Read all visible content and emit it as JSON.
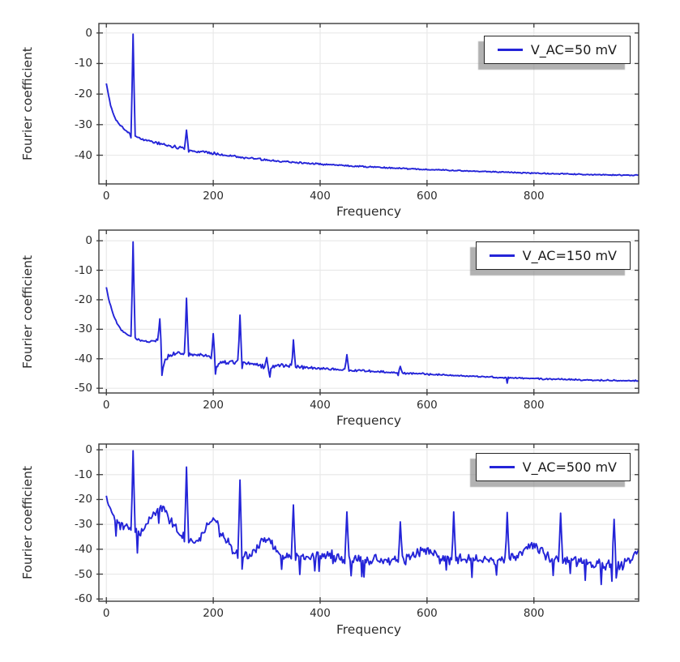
{
  "figure": {
    "background": "#ffffff",
    "line_color": "#2424d8",
    "grid_color": "#e9e9e9",
    "frame_color": "#3b3b3b",
    "text_color": "#2b2b2b",
    "legend_border_color": "#262626",
    "legend_shadow_color": "#b4b4b4"
  },
  "chart_data": [
    {
      "type": "line",
      "title": "",
      "xlabel": "Frequency",
      "ylabel": "Fourier coefficient",
      "legend": "V_AC=50 mV",
      "legend_position": "top-right",
      "grid": true,
      "xticks": [
        0,
        200,
        400,
        600,
        800
      ],
      "yticks": [
        0,
        -10,
        -20,
        -30,
        -40
      ],
      "xlim": [
        -14,
        996
      ],
      "ylim": [
        -49.4,
        3.1
      ],
      "sampling": {
        "start": 0,
        "end": 996,
        "step": 2,
        "seed": 101
      },
      "trend_anchors": [
        [
          0,
          -16.5
        ],
        [
          3,
          -19.5
        ],
        [
          7,
          -23
        ],
        [
          12,
          -26
        ],
        [
          18,
          -28.3
        ],
        [
          25,
          -30
        ],
        [
          32,
          -31.2
        ],
        [
          40,
          -32.3
        ],
        [
          46,
          -33.3
        ],
        [
          55,
          -33.9
        ],
        [
          65,
          -34.6
        ],
        [
          78,
          -35.3
        ],
        [
          92,
          -35.9
        ],
        [
          106,
          -36.4
        ],
        [
          120,
          -37
        ],
        [
          134,
          -37.6
        ],
        [
          148,
          -38.1
        ],
        [
          160,
          -38.4
        ],
        [
          175,
          -38.9
        ],
        [
          190,
          -39.2
        ],
        [
          205,
          -39.6
        ],
        [
          225,
          -40
        ],
        [
          250,
          -40.6
        ],
        [
          275,
          -41.1
        ],
        [
          300,
          -41.6
        ],
        [
          330,
          -42
        ],
        [
          360,
          -42.4
        ],
        [
          400,
          -42.9
        ],
        [
          440,
          -43.3
        ],
        [
          480,
          -43.7
        ],
        [
          520,
          -44
        ],
        [
          560,
          -44.4
        ],
        [
          600,
          -44.7
        ],
        [
          650,
          -45
        ],
        [
          700,
          -45.3
        ],
        [
          750,
          -45.6
        ],
        [
          800,
          -45.9
        ],
        [
          850,
          -46.1
        ],
        [
          900,
          -46.3
        ],
        [
          950,
          -46.5
        ],
        [
          996,
          -46.6
        ]
      ],
      "noise_profile": [
        [
          0,
          0.25
        ],
        [
          60,
          0.3
        ],
        [
          110,
          0.6
        ],
        [
          150,
          0.7
        ],
        [
          200,
          0.55
        ],
        [
          260,
          0.45
        ],
        [
          350,
          0.3
        ],
        [
          600,
          0.22
        ],
        [
          1000,
          0.2
        ]
      ],
      "peaks": [
        [
          50,
          -0.4
        ],
        [
          150,
          -31.8
        ]
      ],
      "dips": [
        [
          46,
          -34.3
        ]
      ],
      "deep_dip_prob": 0,
      "deep_dip_extra": 0
    },
    {
      "type": "line",
      "title": "",
      "xlabel": "Frequency",
      "ylabel": "Fourier coefficient",
      "legend": "V_AC=150 mV",
      "legend_position": "top-right",
      "grid": true,
      "xticks": [
        0,
        200,
        400,
        600,
        800
      ],
      "yticks": [
        0,
        -10,
        -20,
        -30,
        -40,
        -50
      ],
      "xlim": [
        -14,
        996
      ],
      "ylim": [
        -51.6,
        3.6
      ],
      "sampling": {
        "start": 0,
        "end": 996,
        "step": 2,
        "seed": 202
      },
      "trend_anchors": [
        [
          0,
          -15.8
        ],
        [
          4,
          -19.5
        ],
        [
          8,
          -22
        ],
        [
          14,
          -25.5
        ],
        [
          20,
          -28
        ],
        [
          26,
          -29.8
        ],
        [
          32,
          -31
        ],
        [
          38,
          -31.8
        ],
        [
          44,
          -32.4
        ],
        [
          52,
          -33
        ],
        [
          62,
          -33.6
        ],
        [
          72,
          -34
        ],
        [
          82,
          -34.2
        ],
        [
          92,
          -34
        ],
        [
          98,
          -33.6
        ],
        [
          102,
          -40
        ],
        [
          106,
          -43
        ],
        [
          110,
          -40.5
        ],
        [
          116,
          -39
        ],
        [
          124,
          -38.6
        ],
        [
          134,
          -38.4
        ],
        [
          144,
          -38.6
        ],
        [
          152,
          -38.4
        ],
        [
          162,
          -38.8
        ],
        [
          172,
          -38.2
        ],
        [
          182,
          -38.8
        ],
        [
          192,
          -39.2
        ],
        [
          200,
          -40
        ],
        [
          204,
          -43.2
        ],
        [
          210,
          -41.6
        ],
        [
          220,
          -41.2
        ],
        [
          232,
          -41.4
        ],
        [
          244,
          -41
        ],
        [
          256,
          -41.4
        ],
        [
          268,
          -41.6
        ],
        [
          280,
          -42
        ],
        [
          292,
          -42.6
        ],
        [
          300,
          -43
        ],
        [
          304,
          -44.6
        ],
        [
          310,
          -42.6
        ],
        [
          322,
          -42.1
        ],
        [
          334,
          -42.3
        ],
        [
          346,
          -42.5
        ],
        [
          360,
          -42.8
        ],
        [
          380,
          -43
        ],
        [
          400,
          -43.2
        ],
        [
          430,
          -43.6
        ],
        [
          460,
          -43.9
        ],
        [
          490,
          -44.2
        ],
        [
          520,
          -44.5
        ],
        [
          560,
          -44.9
        ],
        [
          600,
          -45.2
        ],
        [
          640,
          -45.6
        ],
        [
          680,
          -45.9
        ],
        [
          720,
          -46.2
        ],
        [
          760,
          -46.5
        ],
        [
          800,
          -46.7
        ],
        [
          840,
          -46.9
        ],
        [
          880,
          -47.1
        ],
        [
          920,
          -47.3
        ],
        [
          960,
          -47.4
        ],
        [
          996,
          -47.5
        ]
      ],
      "noise_profile": [
        [
          0,
          0.25
        ],
        [
          60,
          0.35
        ],
        [
          95,
          0.5
        ],
        [
          110,
          0.9
        ],
        [
          170,
          0.7
        ],
        [
          230,
          0.8
        ],
        [
          320,
          0.7
        ],
        [
          420,
          0.5
        ],
        [
          520,
          0.35
        ],
        [
          700,
          0.28
        ],
        [
          1000,
          0.25
        ]
      ],
      "peaks": [
        [
          50,
          -0.4
        ],
        [
          100,
          -26.5
        ],
        [
          150,
          -19.5
        ],
        [
          200,
          -31.5
        ],
        [
          250,
          -25.2
        ],
        [
          300,
          -39.6
        ],
        [
          350,
          -33.6
        ],
        [
          450,
          -38.6
        ],
        [
          550,
          -42.6
        ]
      ],
      "dips": [
        [
          104,
          -45.6
        ],
        [
          204,
          -45.2
        ],
        [
          306,
          -46.2
        ]
      ],
      "deep_dip_prob": 0.008,
      "deep_dip_extra": 2
    },
    {
      "type": "line",
      "title": "",
      "xlabel": "Frequency",
      "ylabel": "Fourier coefficient",
      "legend": "V_AC=500 mV",
      "legend_position": "top-right",
      "grid": true,
      "xticks": [
        0,
        200,
        400,
        600,
        800
      ],
      "yticks": [
        0,
        -10,
        -20,
        -30,
        -40,
        -50,
        -60
      ],
      "xlim": [
        -14,
        996
      ],
      "ylim": [
        -60.9,
        2.3
      ],
      "sampling": {
        "start": 0,
        "end": 996,
        "step": 2,
        "seed": 303
      },
      "trend_anchors": [
        [
          0,
          -19.5
        ],
        [
          6,
          -23
        ],
        [
          12,
          -26
        ],
        [
          18,
          -28.5
        ],
        [
          26,
          -30.5
        ],
        [
          34,
          -31.5
        ],
        [
          44,
          -32.3
        ],
        [
          52,
          -32.5
        ],
        [
          58,
          -34.5
        ],
        [
          64,
          -33
        ],
        [
          72,
          -31
        ],
        [
          80,
          -28.5
        ],
        [
          88,
          -26
        ],
        [
          96,
          -23.8
        ],
        [
          102,
          -23
        ],
        [
          108,
          -24.5
        ],
        [
          116,
          -27
        ],
        [
          124,
          -30
        ],
        [
          132,
          -32.5
        ],
        [
          140,
          -34.5
        ],
        [
          150,
          -35.8
        ],
        [
          160,
          -36.5
        ],
        [
          170,
          -37.5
        ],
        [
          178,
          -34.5
        ],
        [
          186,
          -31
        ],
        [
          194,
          -28.8
        ],
        [
          202,
          -27.8
        ],
        [
          210,
          -30.5
        ],
        [
          218,
          -33.5
        ],
        [
          226,
          -37
        ],
        [
          234,
          -40.5
        ],
        [
          244,
          -42
        ],
        [
          256,
          -42.3
        ],
        [
          268,
          -42.8
        ],
        [
          278,
          -41
        ],
        [
          288,
          -38
        ],
        [
          298,
          -35.8
        ],
        [
          308,
          -37.5
        ],
        [
          318,
          -40.5
        ],
        [
          330,
          -42.8
        ],
        [
          344,
          -43.2
        ],
        [
          360,
          -43
        ],
        [
          380,
          -42.6
        ],
        [
          400,
          -42.2
        ],
        [
          420,
          -43
        ],
        [
          440,
          -43.6
        ],
        [
          470,
          -44
        ],
        [
          500,
          -44
        ],
        [
          530,
          -44.3
        ],
        [
          556,
          -44.2
        ],
        [
          576,
          -42.8
        ],
        [
          592,
          -41
        ],
        [
          600,
          -40.5
        ],
        [
          610,
          -41.8
        ],
        [
          622,
          -43.4
        ],
        [
          640,
          -44
        ],
        [
          664,
          -44.3
        ],
        [
          690,
          -44.2
        ],
        [
          716,
          -44.4
        ],
        [
          740,
          -44.3
        ],
        [
          760,
          -43.5
        ],
        [
          778,
          -41
        ],
        [
          792,
          -38.3
        ],
        [
          800,
          -37.8
        ],
        [
          808,
          -39
        ],
        [
          818,
          -41.5
        ],
        [
          830,
          -43.5
        ],
        [
          850,
          -44.3
        ],
        [
          880,
          -44.8
        ],
        [
          910,
          -45.3
        ],
        [
          940,
          -45.8
        ],
        [
          966,
          -46
        ],
        [
          984,
          -43.5
        ],
        [
          996,
          -40.5
        ]
      ],
      "noise_profile": [
        [
          0,
          1.2
        ],
        [
          30,
          1.8
        ],
        [
          60,
          2.2
        ],
        [
          90,
          1.6
        ],
        [
          130,
          2.0
        ],
        [
          180,
          1.6
        ],
        [
          230,
          2.2
        ],
        [
          300,
          1.8
        ],
        [
          360,
          2.4
        ],
        [
          420,
          2.6
        ],
        [
          500,
          2.4
        ],
        [
          560,
          2.2
        ],
        [
          620,
          2.4
        ],
        [
          700,
          2.3
        ],
        [
          780,
          1.8
        ],
        [
          830,
          2.2
        ],
        [
          900,
          2.4
        ],
        [
          960,
          2.6
        ],
        [
          1000,
          1.6
        ]
      ],
      "peaks": [
        [
          50,
          -0.4
        ],
        [
          150,
          -7
        ],
        [
          250,
          -12.2
        ],
        [
          350,
          -22.2
        ],
        [
          450,
          -25
        ],
        [
          550,
          -29
        ],
        [
          650,
          -25
        ],
        [
          750,
          -25.2
        ],
        [
          850,
          -25.5
        ],
        [
          950,
          -28
        ]
      ],
      "dips": [
        [
          58,
          -41.5
        ]
      ],
      "deep_dip_prob": 0.05,
      "deep_dip_extra": 8
    }
  ]
}
